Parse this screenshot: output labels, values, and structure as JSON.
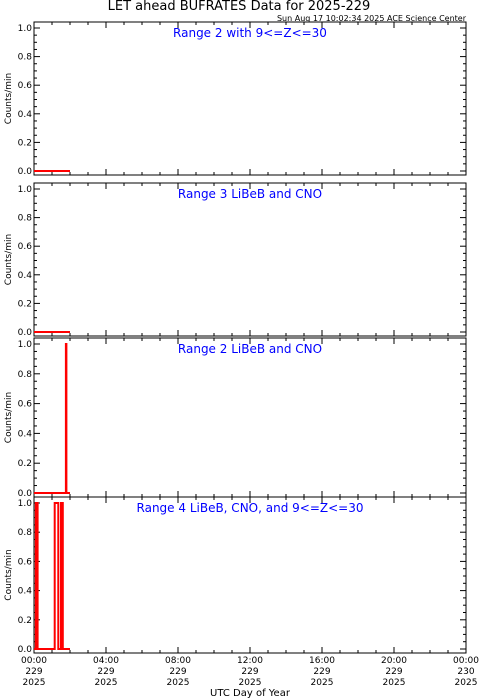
{
  "header": {
    "title": "LET ahead BUFRATES Data for 2025-229",
    "timestamp": "Sun Aug 17 10:02:34 2025 ACE Science Center"
  },
  "colors": {
    "data": "#ff0000",
    "panel_title": "#0000ff",
    "axis": "#000000"
  },
  "chart_data": [
    {
      "type": "line",
      "title": "Range 2 with 9<=Z<=30",
      "ylabel": "Counts/min",
      "ylim": [
        0,
        1
      ],
      "xlim": [
        0,
        24
      ],
      "grid": false,
      "yticks": [
        "0.0",
        "0.2",
        "0.4",
        "0.6",
        "0.8",
        "1.0"
      ],
      "segments": [
        [
          [
            0,
            0
          ],
          [
            2.0,
            0
          ]
        ]
      ]
    },
    {
      "type": "line",
      "title": "Range 3 LiBeB and CNO",
      "ylabel": "Counts/min",
      "ylim": [
        0,
        1
      ],
      "xlim": [
        0,
        24
      ],
      "grid": false,
      "yticks": [
        "0.0",
        "0.2",
        "0.4",
        "0.6",
        "0.8",
        "1.0"
      ],
      "segments": [
        [
          [
            0,
            0
          ],
          [
            2.0,
            0
          ]
        ]
      ]
    },
    {
      "type": "line",
      "title": "Range 2 LiBeB and CNO",
      "ylabel": "Counts/min",
      "ylim": [
        0,
        1
      ],
      "xlim": [
        0,
        24
      ],
      "grid": false,
      "yticks": [
        "0.0",
        "0.2",
        "0.4",
        "0.6",
        "0.8",
        "1.0"
      ],
      "segments": [
        [
          [
            0,
            0
          ],
          [
            1.77,
            0
          ],
          [
            1.77,
            1
          ],
          [
            1.8,
            1
          ],
          [
            1.8,
            0
          ],
          [
            2.0,
            0
          ]
        ]
      ]
    },
    {
      "type": "line",
      "title": "Range 4 LiBeB, CNO, and 9<=Z<=30",
      "ylabel": "Counts/min",
      "ylim": [
        0,
        1
      ],
      "xlim": [
        0,
        24
      ],
      "grid": false,
      "yticks": [
        "0.0",
        "0.2",
        "0.4",
        "0.6",
        "0.8",
        "1.0"
      ],
      "segments": [
        [
          [
            0,
            0
          ],
          [
            0.1,
            0
          ],
          [
            0.1,
            1
          ],
          [
            0.2,
            1
          ],
          [
            0.2,
            0
          ],
          [
            1.15,
            0
          ],
          [
            1.15,
            1
          ],
          [
            1.35,
            1
          ],
          [
            1.35,
            0
          ],
          [
            1.5,
            0
          ],
          [
            1.5,
            1
          ],
          [
            1.6,
            1
          ],
          [
            1.6,
            0
          ],
          [
            2.0,
            0
          ]
        ]
      ]
    }
  ],
  "xaxis": {
    "label": "UTC Day of Year",
    "ticks": [
      {
        "value": 0,
        "lines": [
          "00:00",
          "229",
          "2025"
        ]
      },
      {
        "value": 4,
        "lines": [
          "04:00",
          "229",
          "2025"
        ]
      },
      {
        "value": 8,
        "lines": [
          "08:00",
          "229",
          "2025"
        ]
      },
      {
        "value": 12,
        "lines": [
          "12:00",
          "229",
          "2025"
        ]
      },
      {
        "value": 16,
        "lines": [
          "16:00",
          "229",
          "2025"
        ]
      },
      {
        "value": 20,
        "lines": [
          "20:00",
          "229",
          "2025"
        ]
      },
      {
        "value": 24,
        "lines": [
          "00:00",
          "230",
          "2025"
        ]
      }
    ]
  }
}
